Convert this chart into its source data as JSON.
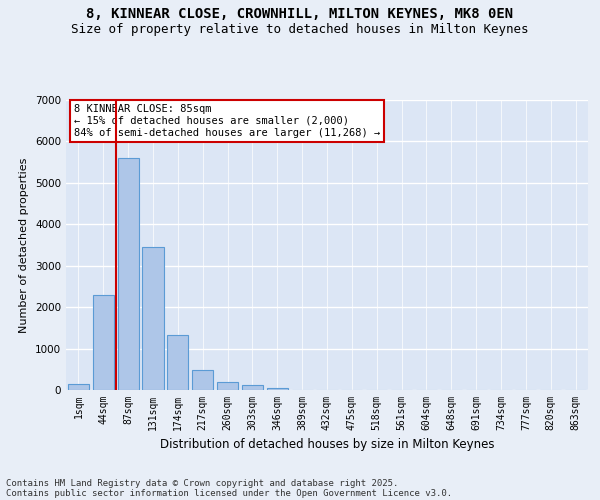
{
  "title": "8, KINNEAR CLOSE, CROWNHILL, MILTON KEYNES, MK8 0EN",
  "subtitle": "Size of property relative to detached houses in Milton Keynes",
  "xlabel": "Distribution of detached houses by size in Milton Keynes",
  "ylabel": "Number of detached properties",
  "categories": [
    "1sqm",
    "44sqm",
    "87sqm",
    "131sqm",
    "174sqm",
    "217sqm",
    "260sqm",
    "303sqm",
    "346sqm",
    "389sqm",
    "432sqm",
    "475sqm",
    "518sqm",
    "561sqm",
    "604sqm",
    "648sqm",
    "691sqm",
    "734sqm",
    "777sqm",
    "820sqm",
    "863sqm"
  ],
  "values": [
    150,
    2300,
    5600,
    3450,
    1320,
    490,
    195,
    115,
    60,
    10,
    0,
    0,
    0,
    0,
    0,
    0,
    0,
    0,
    0,
    0,
    0
  ],
  "bar_color": "#aec6e8",
  "bar_edge_color": "#5b9bd5",
  "vline_color": "#cc0000",
  "ylim": [
    0,
    7000
  ],
  "yticks": [
    0,
    1000,
    2000,
    3000,
    4000,
    5000,
    6000,
    7000
  ],
  "annotation_text": "8 KINNEAR CLOSE: 85sqm\n← 15% of detached houses are smaller (2,000)\n84% of semi-detached houses are larger (11,268) →",
  "annotation_box_color": "#ffffff",
  "annotation_box_edge": "#cc0000",
  "footer_line1": "Contains HM Land Registry data © Crown copyright and database right 2025.",
  "footer_line2": "Contains public sector information licensed under the Open Government Licence v3.0.",
  "background_color": "#e8eef7",
  "plot_bg_color": "#dce6f5",
  "grid_color": "#ffffff",
  "title_fontsize": 10,
  "subtitle_fontsize": 9,
  "tick_fontsize": 7,
  "ylabel_fontsize": 8,
  "xlabel_fontsize": 8.5,
  "footer_fontsize": 6.5,
  "ann_fontsize": 7.5
}
